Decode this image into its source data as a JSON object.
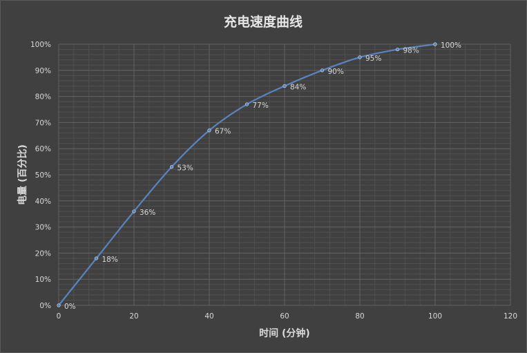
{
  "chart_data": {
    "type": "scatter",
    "title": "充电速度曲线",
    "xlabel": "时间 (分钟)",
    "ylabel": "电量 (百分比)",
    "xlim": [
      0,
      120
    ],
    "ylim": [
      0,
      100
    ],
    "x_ticks": [
      0,
      20,
      40,
      60,
      80,
      100,
      120
    ],
    "y_ticks": [
      0,
      10,
      20,
      30,
      40,
      50,
      60,
      70,
      80,
      90,
      100
    ],
    "x_tick_labels": [
      "0",
      "20",
      "40",
      "60",
      "80",
      "100",
      "120"
    ],
    "y_tick_labels": [
      "0%",
      "10%",
      "20%",
      "30%",
      "40%",
      "50%",
      "60%",
      "70%",
      "80%",
      "90%",
      "100%"
    ],
    "smooth_line": true,
    "grid": "major and minor",
    "series": [
      {
        "x": [
          0,
          10,
          20,
          30,
          40,
          50,
          60,
          70,
          80,
          90,
          100
        ],
        "values": [
          0,
          18,
          36,
          53,
          67,
          77,
          84,
          90,
          95,
          98,
          100
        ],
        "labels": [
          "0%",
          "18%",
          "36%",
          "53%",
          "67%",
          "77%",
          "84%",
          "90%",
          "95%",
          "98%",
          "100%"
        ],
        "color": "#5b84bf"
      }
    ],
    "colors": {
      "background": "#404040",
      "major_grid": "#626262",
      "minor_grid": "#4f4f4f",
      "text": "#d9d9d9"
    }
  }
}
